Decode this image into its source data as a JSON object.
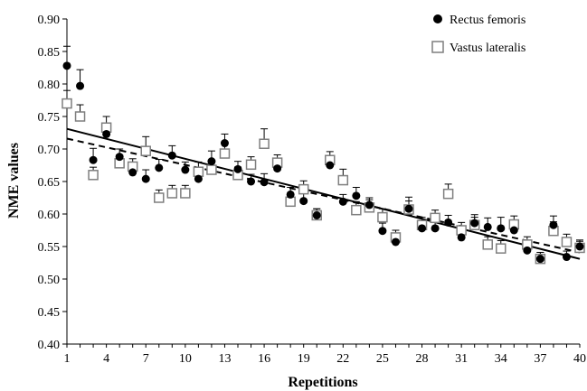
{
  "chart_data": {
    "type": "scatter",
    "xlabel": "Repetitions",
    "ylabel": "NME values",
    "xlim": [
      1,
      40
    ],
    "ylim": [
      0.4,
      0.9
    ],
    "xticks": [
      1,
      4,
      7,
      10,
      13,
      16,
      19,
      22,
      25,
      28,
      31,
      34,
      37,
      40
    ],
    "yticks": [
      "0.40",
      "0.45",
      "0.50",
      "0.55",
      "0.60",
      "0.65",
      "0.70",
      "0.75",
      "0.80",
      "0.85",
      "0.90"
    ],
    "legend_position": "top-right",
    "grid": false,
    "x": [
      1,
      2,
      3,
      4,
      5,
      6,
      7,
      8,
      9,
      10,
      11,
      12,
      13,
      14,
      15,
      16,
      17,
      18,
      19,
      20,
      21,
      22,
      23,
      24,
      25,
      26,
      27,
      28,
      29,
      30,
      31,
      32,
      33,
      34,
      35,
      36,
      37,
      38,
      39,
      40
    ],
    "series": [
      {
        "name": "Rectus femoris",
        "marker": "filled-circle",
        "color": "#000000",
        "values": [
          0.828,
          0.797,
          0.683,
          0.723,
          0.688,
          0.664,
          0.654,
          0.671,
          0.69,
          0.668,
          0.654,
          0.681,
          0.709,
          0.669,
          0.65,
          0.649,
          0.67,
          0.63,
          0.62,
          0.598,
          0.675,
          0.619,
          0.628,
          0.614,
          0.574,
          0.557,
          0.608,
          0.578,
          0.578,
          0.587,
          0.564,
          0.586,
          0.58,
          0.578,
          0.575,
          0.544,
          0.531,
          0.583,
          0.534,
          0.55
        ],
        "error": [
          0.03,
          0.025,
          0.018,
          0.015,
          0.012,
          0.013,
          0.014,
          0.013,
          0.015,
          0.012,
          0.011,
          0.016,
          0.014,
          0.012,
          0.011,
          0.013,
          0.015,
          0.011,
          0.012,
          0.01,
          0.013,
          0.011,
          0.013,
          0.011,
          0.012,
          0.011,
          0.018,
          0.012,
          0.011,
          0.011,
          0.012,
          0.013,
          0.014,
          0.017,
          0.012,
          0.011,
          0.01,
          0.014,
          0.009,
          0.01
        ]
      },
      {
        "name": "Vastus lateralis",
        "marker": "open-square",
        "color": "#7f7f7f",
        "values": [
          0.77,
          0.75,
          0.66,
          0.733,
          0.678,
          0.673,
          0.697,
          0.625,
          0.632,
          0.632,
          0.665,
          0.668,
          0.693,
          0.66,
          0.676,
          0.708,
          0.679,
          0.619,
          0.638,
          0.598,
          0.683,
          0.652,
          0.606,
          0.61,
          0.595,
          0.564,
          0.607,
          0.583,
          0.594,
          0.631,
          0.575,
          0.583,
          0.553,
          0.547,
          0.584,
          0.553,
          0.531,
          0.574,
          0.557,
          0.548
        ],
        "error": [
          0.02,
          0.018,
          0.012,
          0.017,
          0.013,
          0.012,
          0.022,
          0.012,
          0.012,
          0.012,
          0.015,
          0.013,
          0.018,
          0.012,
          0.012,
          0.023,
          0.012,
          0.012,
          0.013,
          0.01,
          0.013,
          0.017,
          0.013,
          0.012,
          0.013,
          0.011,
          0.013,
          0.012,
          0.012,
          0.015,
          0.012,
          0.012,
          0.012,
          0.012,
          0.013,
          0.012,
          0.01,
          0.014,
          0.012,
          0.01
        ]
      }
    ],
    "trendlines": [
      {
        "series": "Rectus femoris",
        "style": "solid",
        "y_at_x1": 0.731,
        "y_at_x40": 0.531
      },
      {
        "series": "Vastus lateralis",
        "style": "dashed",
        "y_at_x1": 0.716,
        "y_at_x40": 0.541
      }
    ]
  }
}
